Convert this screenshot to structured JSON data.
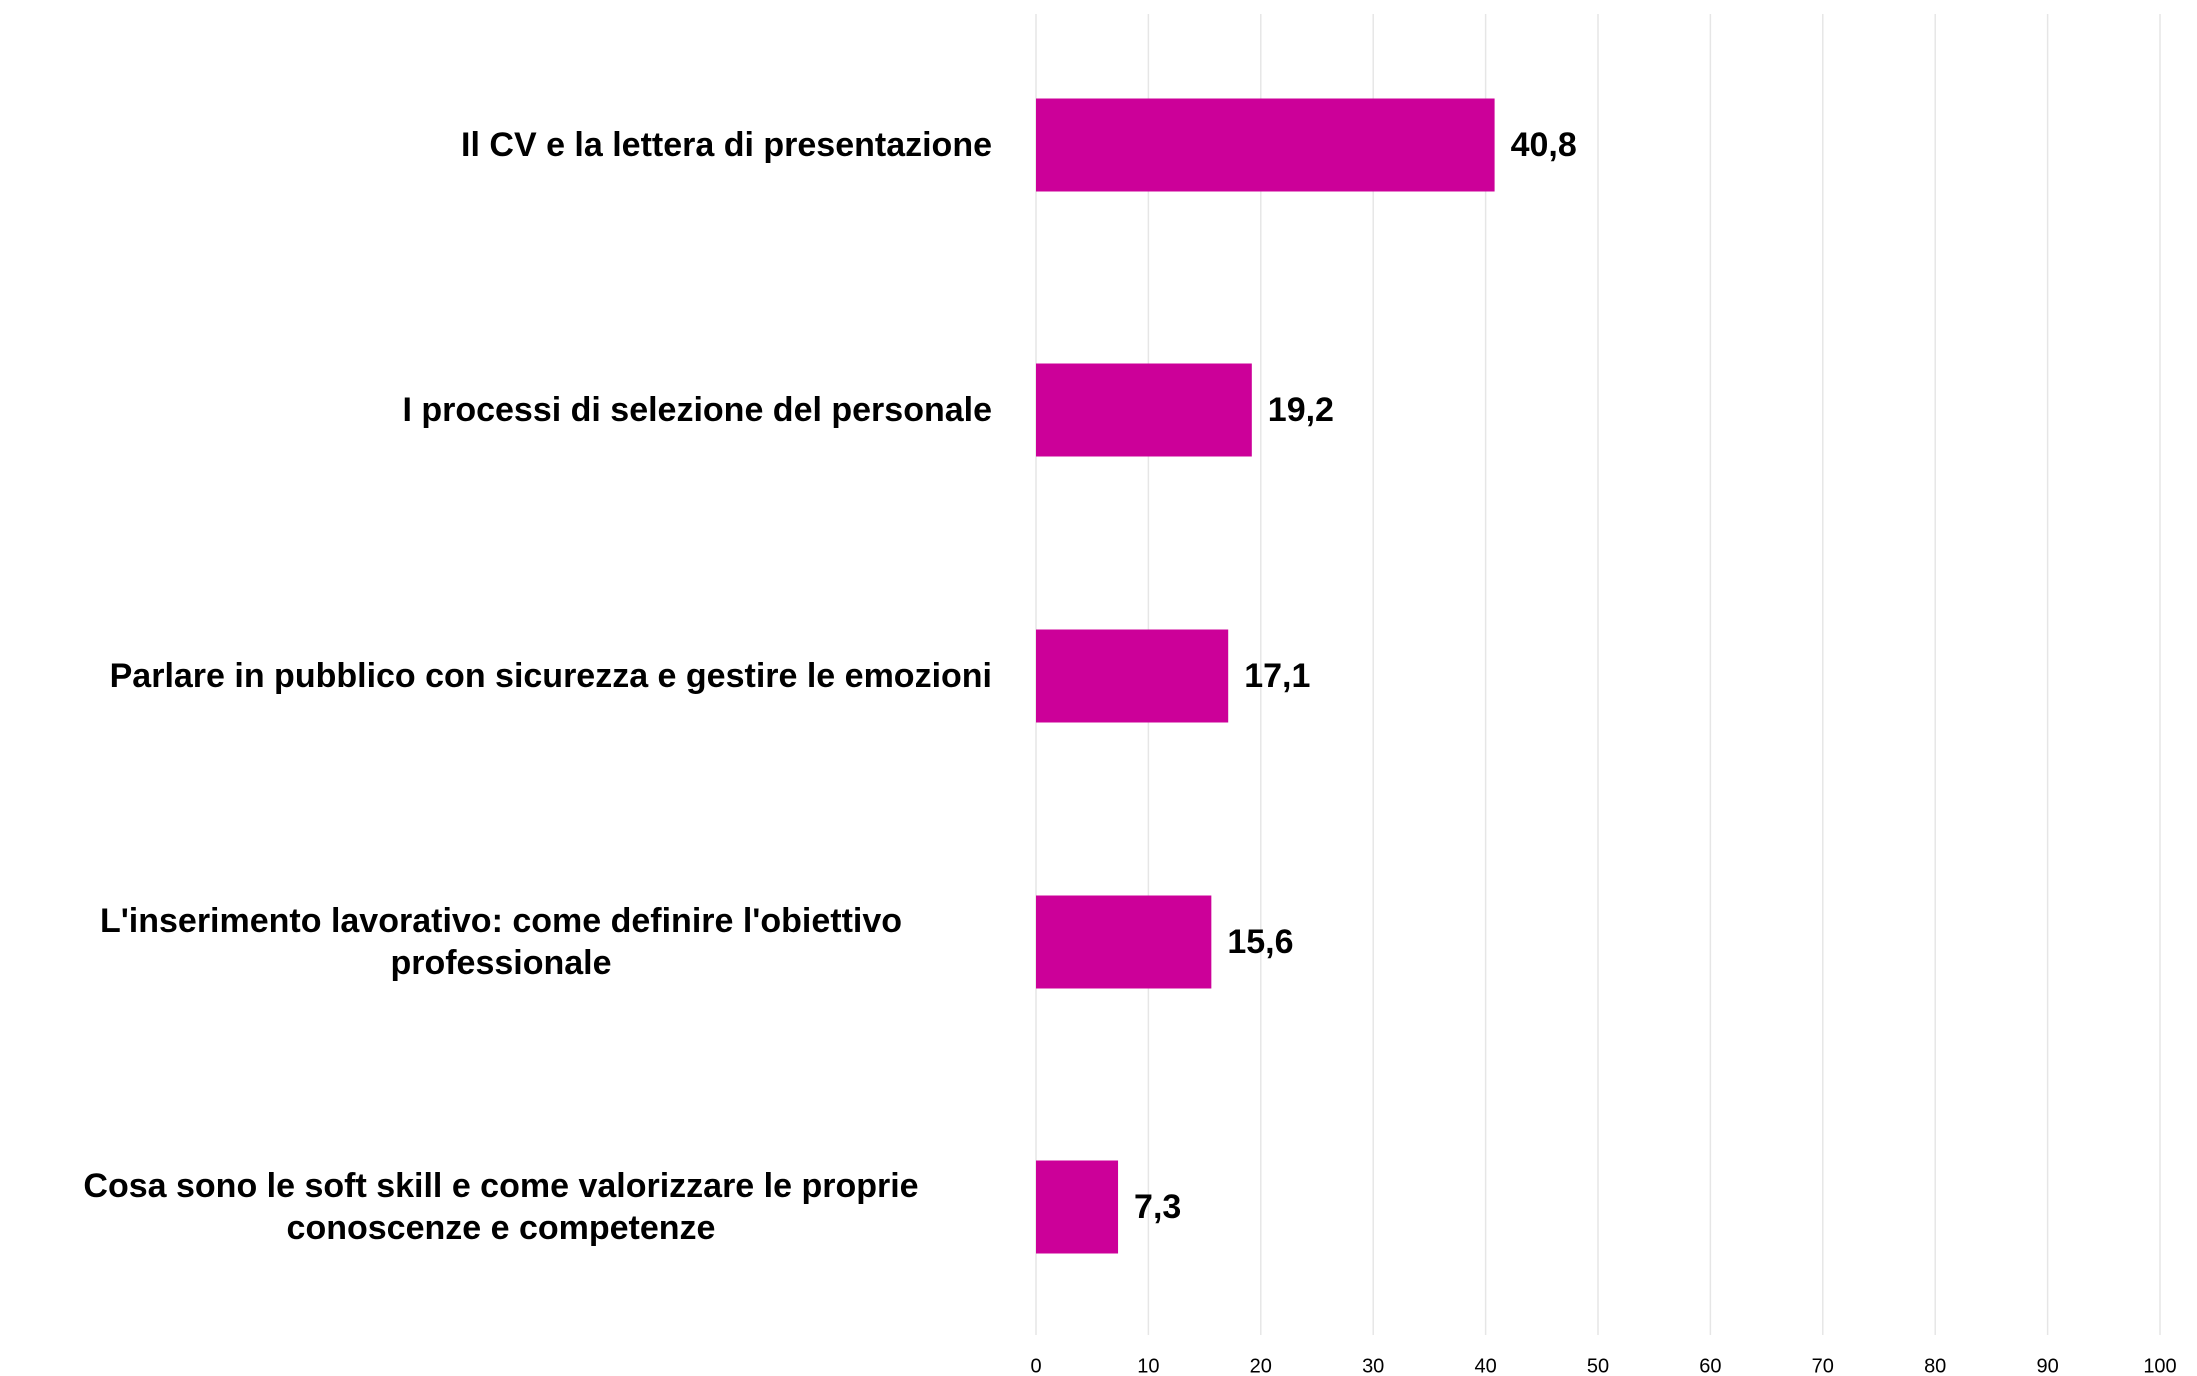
{
  "chart_data": {
    "type": "bar",
    "orientation": "horizontal",
    "categories": [
      "Il CV e la lettera di presentazione",
      "I processi di selezione del personale",
      "Parlare in pubblico con sicurezza e gestire le emozioni",
      "L'inserimento lavorativo: come definire l'obiettivo professionale",
      "Cosa sono le soft skill e come valorizzare le proprie conoscenze e competenze"
    ],
    "values": [
      40.8,
      19.2,
      17.1,
      15.6,
      7.3
    ],
    "value_labels": [
      "40,8",
      "19,2",
      "17,1",
      "15,6",
      "7,3"
    ],
    "color": "#cc0099",
    "xlim": [
      0,
      100
    ],
    "xticks": [
      0,
      10,
      20,
      30,
      40,
      50,
      60,
      70,
      80,
      90,
      100
    ],
    "grid": true
  }
}
